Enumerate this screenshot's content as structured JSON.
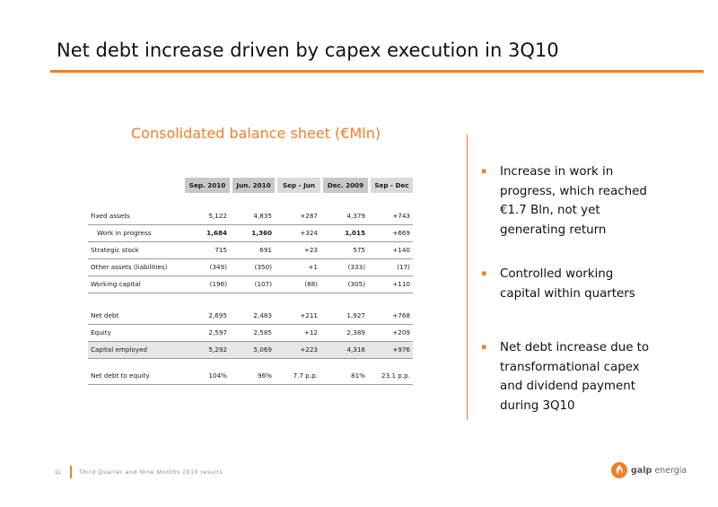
{
  "title": "Net debt increase driven by capex execution in 3Q10",
  "table": {
    "heading": "Consolidated balance sheet (€Mln)",
    "columns": [
      "Sep. 2010",
      "Jun. 2010",
      "Sep - Jun",
      "Dec. 2009",
      "Sep - Dec"
    ],
    "rows": [
      {
        "label": "Fixed assets",
        "values": [
          "5,122",
          "4,835",
          "+287",
          "4,379",
          "+743"
        ]
      },
      {
        "label": "Work in progress",
        "values": [
          "1,684",
          "1,360",
          "+324",
          "1,015",
          "+669"
        ]
      },
      {
        "label": "Strategic stock",
        "values": [
          "715",
          "691",
          "+23",
          "575",
          "+140"
        ]
      },
      {
        "label": "Other assets (liabilities)",
        "values": [
          "(349)",
          "(350)",
          "+1",
          "(333)",
          "(17)"
        ]
      },
      {
        "label": "Working capital",
        "values": [
          "(196)",
          "(107)",
          "(88)",
          "(305)",
          "+110"
        ]
      },
      {
        "label": "Net debt",
        "values": [
          "2,695",
          "2,483",
          "+211",
          "1,927",
          "+768"
        ]
      },
      {
        "label": "Equity",
        "values": [
          "2,597",
          "2,585",
          "+12",
          "2,389",
          "+209"
        ]
      },
      {
        "label": "Capital employed",
        "values": [
          "5,292",
          "5,069",
          "+223",
          "4,316",
          "+976"
        ]
      },
      {
        "label": "Net debt to equity",
        "values": [
          "104%",
          "96%",
          "7.7 p.p.",
          "81%",
          "23.1 p.p."
        ]
      }
    ]
  },
  "bullets": [
    {
      "marker": "▪",
      "lines": [
        "Increase in work in",
        "progress, which reached",
        "€1.7 Bln, not yet",
        "generating return"
      ]
    },
    {
      "marker": "▪",
      "lines": [
        "Controlled working",
        "capital within quarters"
      ]
    },
    {
      "marker": "▪",
      "lines": [
        "Net debt increase due to",
        "transformational capex",
        "and dividend payment",
        "during 3Q10"
      ]
    }
  ],
  "footer": {
    "page_number": "11",
    "text": "Third Quarter and Nine Months 2010 results"
  },
  "logo": {
    "word1": "galp",
    "word2": "energia"
  },
  "colors": {
    "accent": "#f07f2a",
    "header_shade": "#c8c8c8",
    "row_shade": "#e6e6e6"
  }
}
